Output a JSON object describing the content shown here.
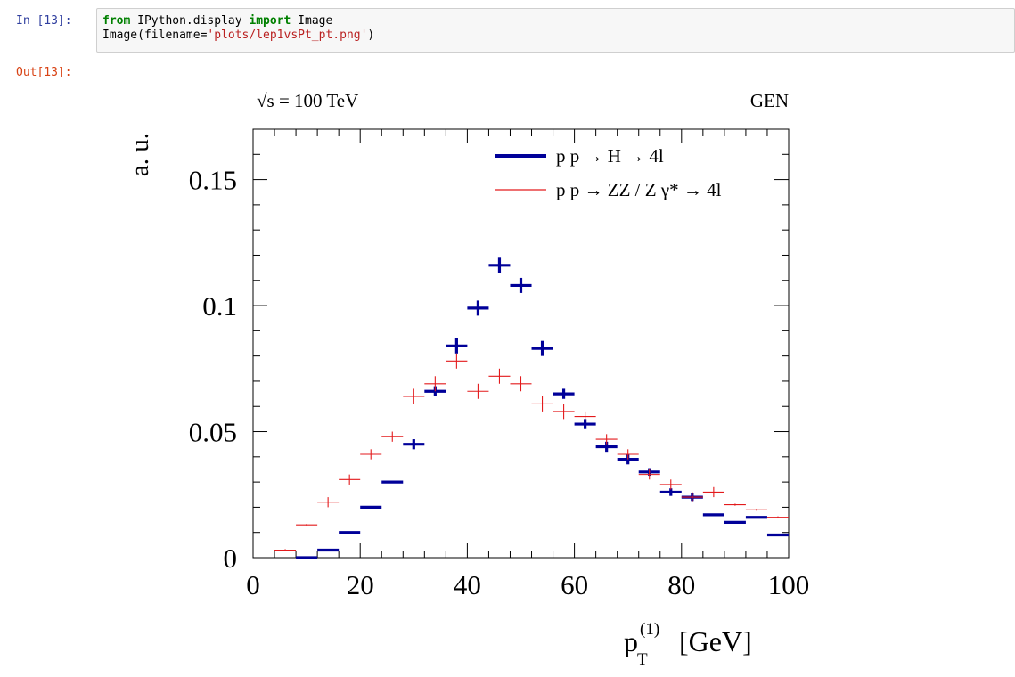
{
  "cell": {
    "in_prompt": "In [13]:",
    "out_prompt": "Out[13]:",
    "code": {
      "line1": {
        "kw_from": "from",
        "module": " IPython.display ",
        "kw_import": "import",
        "name": " Image"
      },
      "line2": {
        "pre": "Image(filename=",
        "str": "'plots/lep1vsPt_pt.png'",
        "post": ")"
      }
    }
  },
  "colors": {
    "higgs": "#000099",
    "zz": "#e31a1c",
    "in_prompt": "#303f9f",
    "out_prompt": "#d84315"
  },
  "chart_data": {
    "type": "scatter",
    "annotation_left": "√s = 100 TeV",
    "annotation_right": "GEN",
    "ylabel": "a. u.",
    "xlabel_main": "p",
    "xlabel_sup": "(1)",
    "xlabel_sub": "T",
    "xlabel_unit": "[GeV]",
    "xlim": [
      0,
      100
    ],
    "ylim": [
      0,
      0.17
    ],
    "x_ticks": [
      "0",
      "20",
      "40",
      "60",
      "80",
      "100"
    ],
    "x_tick_values": [
      0,
      20,
      40,
      60,
      80,
      100
    ],
    "y_ticks": [
      "0",
      "0.05",
      "0.1",
      "0.15"
    ],
    "y_tick_values": [
      0,
      0.05,
      0.1,
      0.15
    ],
    "bin_width": 4,
    "legend_position": "top-right",
    "series": [
      {
        "name": "p p → H → 4l",
        "color": "#000099",
        "style": "thick",
        "points": [
          {
            "x": 10,
            "y": 0.0,
            "err": 0.0
          },
          {
            "x": 14,
            "y": 0.003,
            "err": 0.0
          },
          {
            "x": 18,
            "y": 0.01,
            "err": 0.0
          },
          {
            "x": 22,
            "y": 0.02,
            "err": 0.0
          },
          {
            "x": 26,
            "y": 0.03,
            "err": 0.0
          },
          {
            "x": 30,
            "y": 0.045,
            "err": 0.002
          },
          {
            "x": 34,
            "y": 0.066,
            "err": 0.002
          },
          {
            "x": 38,
            "y": 0.084,
            "err": 0.003
          },
          {
            "x": 42,
            "y": 0.099,
            "err": 0.003
          },
          {
            "x": 46,
            "y": 0.116,
            "err": 0.003
          },
          {
            "x": 50,
            "y": 0.108,
            "err": 0.003
          },
          {
            "x": 54,
            "y": 0.083,
            "err": 0.003
          },
          {
            "x": 58,
            "y": 0.065,
            "err": 0.002
          },
          {
            "x": 62,
            "y": 0.053,
            "err": 0.002
          },
          {
            "x": 66,
            "y": 0.044,
            "err": 0.002
          },
          {
            "x": 70,
            "y": 0.039,
            "err": 0.002
          },
          {
            "x": 74,
            "y": 0.034,
            "err": 0.0015
          },
          {
            "x": 78,
            "y": 0.026,
            "err": 0.0015
          },
          {
            "x": 82,
            "y": 0.024,
            "err": 0.0015
          },
          {
            "x": 86,
            "y": 0.017,
            "err": 0.0
          },
          {
            "x": 90,
            "y": 0.014,
            "err": 0.0
          },
          {
            "x": 94,
            "y": 0.016,
            "err": 0.0
          },
          {
            "x": 98,
            "y": 0.009,
            "err": 0.0
          }
        ]
      },
      {
        "name": "p p → ZZ / Z γ* → 4l",
        "color": "#e31a1c",
        "style": "thin",
        "points": [
          {
            "x": 6,
            "y": 0.003,
            "err": 0.0
          },
          {
            "x": 10,
            "y": 0.013,
            "err": 0.0
          },
          {
            "x": 14,
            "y": 0.022,
            "err": 0.002
          },
          {
            "x": 18,
            "y": 0.031,
            "err": 0.002
          },
          {
            "x": 22,
            "y": 0.041,
            "err": 0.002
          },
          {
            "x": 26,
            "y": 0.048,
            "err": 0.002
          },
          {
            "x": 30,
            "y": 0.064,
            "err": 0.003
          },
          {
            "x": 34,
            "y": 0.069,
            "err": 0.003
          },
          {
            "x": 38,
            "y": 0.078,
            "err": 0.003
          },
          {
            "x": 42,
            "y": 0.066,
            "err": 0.003
          },
          {
            "x": 46,
            "y": 0.072,
            "err": 0.003
          },
          {
            "x": 50,
            "y": 0.069,
            "err": 0.003
          },
          {
            "x": 54,
            "y": 0.061,
            "err": 0.003
          },
          {
            "x": 58,
            "y": 0.058,
            "err": 0.003
          },
          {
            "x": 62,
            "y": 0.056,
            "err": 0.002
          },
          {
            "x": 66,
            "y": 0.047,
            "err": 0.002
          },
          {
            "x": 70,
            "y": 0.041,
            "err": 0.002
          },
          {
            "x": 74,
            "y": 0.033,
            "err": 0.002
          },
          {
            "x": 78,
            "y": 0.029,
            "err": 0.002
          },
          {
            "x": 82,
            "y": 0.024,
            "err": 0.002
          },
          {
            "x": 86,
            "y": 0.026,
            "err": 0.002
          },
          {
            "x": 90,
            "y": 0.021,
            "err": 0.0
          },
          {
            "x": 94,
            "y": 0.019,
            "err": 0.0
          },
          {
            "x": 98,
            "y": 0.016,
            "err": 0.0
          }
        ]
      }
    ]
  }
}
